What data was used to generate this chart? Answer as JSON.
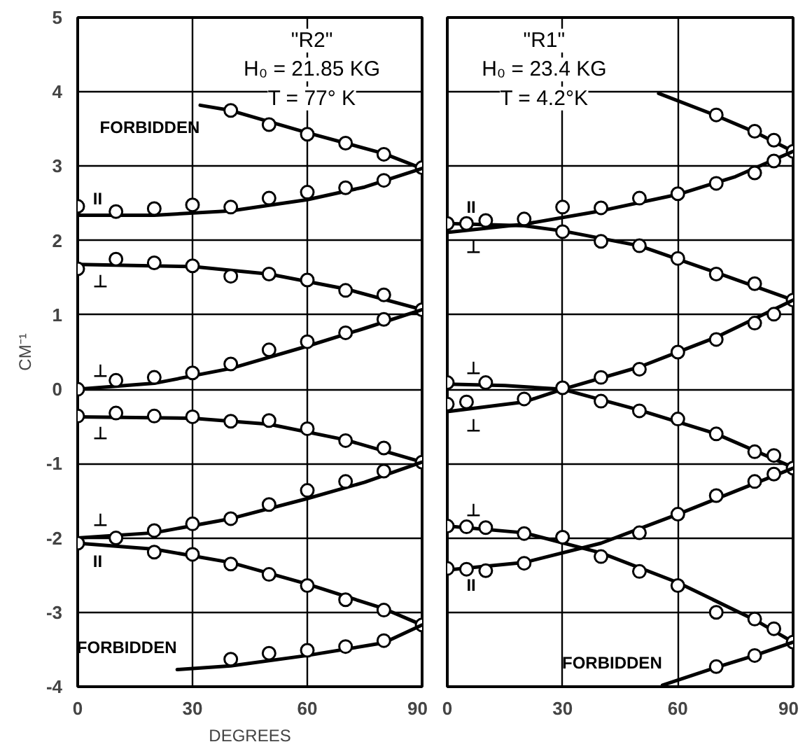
{
  "chart_data": [
    {
      "type": "scatter",
      "xlabel": "DEGREES",
      "ylabel": "CM⁻¹",
      "xlim": [
        0,
        90
      ],
      "ylim": [
        -4,
        5
      ],
      "xticks": [
        0,
        30,
        60,
        90
      ],
      "yticks": [
        -4,
        -3,
        -2,
        -1,
        0,
        1,
        2,
        3,
        4,
        5
      ],
      "grid": true,
      "marker": "circle",
      "annotations": [
        "\"R2\"",
        "H₀ = 21.85 KG",
        "T = 77° K",
        {
          "text": "FORBIDDEN",
          "x": 32,
          "y": 3.82
        },
        {
          "text": "II",
          "x": 4,
          "y": 2.34
        },
        {
          "text": "⊥",
          "x": 4,
          "y": 1.68
        },
        {
          "text": "⊥",
          "x": 4,
          "y": 0.02
        },
        {
          "text": "⊥",
          "x": 4,
          "y": -0.37
        },
        {
          "text": "⊥",
          "x": 4,
          "y": -1.99
        },
        {
          "text": "II",
          "x": 4,
          "y": -2.09
        },
        {
          "text": "FORBIDDEN",
          "x": 26,
          "y": -3.77
        }
      ],
      "series": [
        {
          "type": "line",
          "marker": "none",
          "color": "#000000",
          "x": [
            32,
            40,
            60,
            80,
            90
          ],
          "values": [
            3.82,
            3.75,
            3.45,
            3.17,
            2.97
          ]
        },
        {
          "color": "#000000",
          "x": [
            40,
            50,
            60,
            70,
            80,
            90
          ],
          "values": [
            3.75,
            3.56,
            3.43,
            3.31,
            3.16,
            2.98
          ]
        },
        {
          "type": "line",
          "marker": "none",
          "color": "#000000",
          "x": [
            0,
            20,
            40,
            60,
            75,
            90
          ],
          "values": [
            2.34,
            2.34,
            2.4,
            2.55,
            2.72,
            2.97
          ]
        },
        {
          "color": "#000000",
          "x": [
            0,
            10,
            20,
            30,
            40,
            50,
            60,
            70,
            80
          ],
          "values": [
            2.46,
            2.39,
            2.43,
            2.48,
            2.45,
            2.57,
            2.65,
            2.71,
            2.81
          ]
        },
        {
          "type": "line",
          "marker": "none",
          "color": "#000000",
          "x": [
            0,
            30,
            50,
            70,
            90
          ],
          "values": [
            1.68,
            1.65,
            1.55,
            1.35,
            1.07
          ]
        },
        {
          "color": "#000000",
          "x": [
            0,
            10,
            20,
            30,
            40,
            50,
            60,
            70,
            80,
            90
          ],
          "values": [
            1.62,
            1.75,
            1.7,
            1.66,
            1.52,
            1.55,
            1.47,
            1.33,
            1.27,
            1.07
          ]
        },
        {
          "type": "line",
          "marker": "none",
          "color": "#000000",
          "x": [
            0,
            20,
            40,
            60,
            75,
            90
          ],
          "values": [
            0,
            0.08,
            0.28,
            0.58,
            0.82,
            1.07
          ]
        },
        {
          "color": "#000000",
          "x": [
            0,
            10,
            20,
            30,
            40,
            50,
            60,
            70,
            80
          ],
          "values": [
            0,
            0.12,
            0.16,
            0.22,
            0.34,
            0.53,
            0.64,
            0.76,
            0.94
          ]
        },
        {
          "type": "line",
          "marker": "none",
          "color": "#000000",
          "x": [
            0,
            30,
            50,
            70,
            90
          ],
          "values": [
            -0.37,
            -0.39,
            -0.47,
            -0.68,
            -0.98
          ]
        },
        {
          "color": "#000000",
          "x": [
            0,
            10,
            20,
            30,
            40,
            50,
            60,
            70,
            80,
            90
          ],
          "values": [
            -0.36,
            -0.32,
            -0.36,
            -0.37,
            -0.43,
            -0.42,
            -0.53,
            -0.69,
            -0.79,
            -0.98
          ]
        },
        {
          "type": "line",
          "marker": "none",
          "color": "#000000",
          "x": [
            0,
            20,
            40,
            60,
            75,
            90
          ],
          "values": [
            -2.0,
            -1.93,
            -1.74,
            -1.47,
            -1.25,
            -0.98
          ]
        },
        {
          "color": "#000000",
          "x": [
            10,
            20,
            30,
            40,
            50,
            60,
            70,
            80
          ],
          "values": [
            -2.0,
            -1.9,
            -1.81,
            -1.74,
            -1.55,
            -1.36,
            -1.24,
            -1.1
          ]
        },
        {
          "type": "line",
          "marker": "none",
          "color": "#000000",
          "x": [
            0,
            20,
            40,
            60,
            80,
            90
          ],
          "values": [
            -2.07,
            -2.15,
            -2.33,
            -2.62,
            -2.95,
            -3.17
          ]
        },
        {
          "color": "#000000",
          "x": [
            0,
            20,
            30,
            40,
            50,
            60,
            70,
            80,
            90
          ],
          "values": [
            -2.07,
            -2.19,
            -2.22,
            -2.35,
            -2.49,
            -2.64,
            -2.83,
            -2.97,
            -3.17
          ]
        },
        {
          "type": "line",
          "marker": "none",
          "color": "#000000",
          "x": [
            26,
            40,
            60,
            80,
            90
          ],
          "values": [
            -3.77,
            -3.72,
            -3.58,
            -3.41,
            -3.17
          ]
        },
        {
          "color": "#000000",
          "x": [
            40,
            50,
            60,
            70,
            80
          ],
          "values": [
            -3.63,
            -3.55,
            -3.51,
            -3.46,
            -3.38
          ]
        }
      ]
    },
    {
      "type": "scatter",
      "xlim": [
        0,
        90
      ],
      "ylim": [
        -4,
        5
      ],
      "xticks": [
        0,
        30,
        60,
        90
      ],
      "yticks": [
        -4,
        -3,
        -2,
        -1,
        0,
        1,
        2,
        3,
        4,
        5
      ],
      "grid": true,
      "marker": "circle",
      "tick_labels": "x",
      "annotations": [
        "\"R1\"",
        "H₀ = 23.4 KG",
        "T = 4.2°K",
        {
          "text": "II",
          "x": 5,
          "y": 2.22
        },
        {
          "text": "⊥",
          "x": 5,
          "y": 2.14
        },
        {
          "text": "⊥",
          "x": 5,
          "y": 0.06
        },
        {
          "text": "⊥",
          "x": 5,
          "y": -0.26
        },
        {
          "text": "⊥",
          "x": 5,
          "y": -1.85
        },
        {
          "text": "II",
          "x": 5,
          "y": -2.41
        },
        {
          "text": "FORBIDDEN",
          "x": 56,
          "y": -3.98
        }
      ],
      "series": [
        {
          "type": "line",
          "marker": "none",
          "color": "#000000",
          "x": [
            55,
            70,
            80,
            90
          ],
          "values": [
            3.98,
            3.68,
            3.46,
            3.2
          ]
        },
        {
          "color": "#000000",
          "x": [
            70,
            80,
            85,
            90
          ],
          "values": [
            3.69,
            3.47,
            3.35,
            3.2
          ]
        },
        {
          "type": "line",
          "marker": "none",
          "color": "#000000",
          "x": [
            0,
            20,
            40,
            60,
            75,
            90
          ],
          "values": [
            2.11,
            2.22,
            2.4,
            2.62,
            2.86,
            3.2
          ]
        },
        {
          "color": "#000000",
          "x": [
            30,
            40,
            50,
            60,
            70,
            80,
            85
          ],
          "values": [
            2.45,
            2.44,
            2.57,
            2.63,
            2.77,
            2.91,
            3.07
          ]
        },
        {
          "type": "line",
          "marker": "none",
          "color": "#000000",
          "x": [
            0,
            20,
            30,
            50,
            70,
            90
          ],
          "values": [
            2.23,
            2.2,
            2.13,
            1.93,
            1.57,
            1.2
          ]
        },
        {
          "color": "#000000",
          "x": [
            0,
            5,
            10,
            20,
            30,
            40,
            50,
            60,
            70,
            80,
            90
          ],
          "values": [
            2.23,
            2.23,
            2.27,
            2.29,
            2.12,
            1.99,
            1.93,
            1.76,
            1.55,
            1.42,
            1.2
          ]
        },
        {
          "type": "line",
          "marker": "none",
          "color": "#000000",
          "x": [
            0,
            20,
            30,
            50,
            70,
            90
          ],
          "values": [
            -0.3,
            -0.17,
            0.0,
            0.3,
            0.7,
            1.2
          ]
        },
        {
          "color": "#000000",
          "x": [
            0,
            5,
            20,
            40,
            50,
            60,
            70,
            80,
            85
          ],
          "values": [
            -0.2,
            -0.17,
            -0.13,
            0.16,
            0.27,
            0.5,
            0.67,
            0.89,
            1.01
          ]
        },
        {
          "type": "line",
          "marker": "none",
          "color": "#000000",
          "x": [
            0,
            15,
            30,
            50,
            70,
            90
          ],
          "values": [
            0.07,
            0.05,
            0.0,
            -0.28,
            -0.6,
            -1.05
          ]
        },
        {
          "color": "#000000",
          "x": [
            0,
            10,
            30,
            40,
            50,
            60,
            70,
            80,
            85,
            90
          ],
          "values": [
            0.09,
            0.09,
            0.02,
            -0.16,
            -0.29,
            -0.4,
            -0.6,
            -0.84,
            -0.89,
            -1.06
          ]
        },
        {
          "type": "line",
          "marker": "none",
          "color": "#000000",
          "x": [
            0,
            20,
            40,
            60,
            75,
            90
          ],
          "values": [
            -2.43,
            -2.33,
            -2.07,
            -1.68,
            -1.37,
            -1.06
          ]
        },
        {
          "color": "#000000",
          "x": [
            0,
            5,
            10,
            20,
            50,
            60,
            70,
            80,
            85
          ],
          "values": [
            -2.41,
            -2.42,
            -2.44,
            -2.34,
            -1.93,
            -1.68,
            -1.43,
            -1.24,
            -1.14
          ]
        },
        {
          "type": "line",
          "marker": "none",
          "color": "#000000",
          "x": [
            0,
            20,
            40,
            60,
            80,
            90
          ],
          "values": [
            -1.84,
            -1.93,
            -2.2,
            -2.6,
            -3.1,
            -3.4
          ]
        },
        {
          "color": "#000000",
          "x": [
            0,
            5,
            10,
            20,
            30,
            40,
            50,
            60,
            70,
            80,
            85,
            90
          ],
          "values": [
            -1.84,
            -1.85,
            -1.86,
            -1.94,
            -1.99,
            -2.25,
            -2.45,
            -2.64,
            -3.0,
            -3.09,
            -3.22,
            -3.4
          ]
        },
        {
          "type": "line",
          "marker": "none",
          "color": "#000000",
          "x": [
            56,
            70,
            80,
            90
          ],
          "values": [
            -3.98,
            -3.74,
            -3.58,
            -3.4
          ]
        },
        {
          "color": "#000000",
          "x": [
            70,
            80
          ],
          "values": [
            -3.73,
            -3.58
          ]
        }
      ]
    }
  ]
}
